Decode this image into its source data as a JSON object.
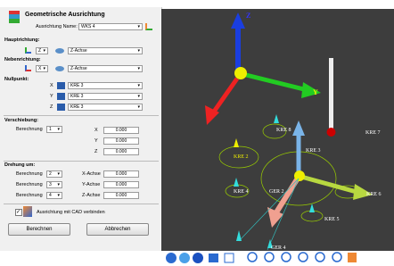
{
  "dialog": {
    "title": "Geometrische Ausrichtung",
    "name_label": "Ausrichtung Name:",
    "name_value": "WKS 4",
    "hauptrichtung": {
      "label": "Hauptrichtung:",
      "axis": "Z",
      "direction": "Z-Achse"
    },
    "nebenrichtung": {
      "label": "Nebenrichtung:",
      "axis": "X",
      "direction": "Z-Achse"
    },
    "nullpunkt": {
      "label": "Nullpunkt:",
      "rows": [
        {
          "axis": "X",
          "value": "KRE 3"
        },
        {
          "axis": "Y",
          "value": "KRE 3"
        },
        {
          "axis": "Z",
          "value": "KRE 3"
        }
      ]
    },
    "verschiebung": {
      "label": "Verschiebung:",
      "berechnung_label": "Berechnung",
      "berechnung": "1",
      "rows": [
        {
          "axis": "X",
          "value": "0.000"
        },
        {
          "axis": "Y",
          "value": "0.000"
        },
        {
          "axis": "Z",
          "value": "0.000"
        }
      ]
    },
    "drehung": {
      "label": "Drehung um:",
      "rows": [
        {
          "berechnung_label": "Berechnung",
          "berechnung": "2",
          "axis": "X-Achse",
          "value": "0.000"
        },
        {
          "berechnung_label": "Berechnung",
          "berechnung": "3",
          "axis": "Y-Achse",
          "value": "0.000"
        },
        {
          "berechnung_label": "Berechnung",
          "berechnung": "4",
          "axis": "Z-Achse",
          "value": "0.000"
        }
      ]
    },
    "checkbox": "Ausrichtung mit CAD verbinden",
    "buttons": [
      "Berechnen",
      "Abbrechen"
    ]
  },
  "viewport": {
    "labels": [
      "Z",
      "Y",
      "KRE 8",
      "KRE 2",
      "KRE 3",
      "KRE 7",
      "GER 2",
      "KRE 4",
      "KRE 6",
      "KRE 5",
      "GER 4"
    ]
  }
}
